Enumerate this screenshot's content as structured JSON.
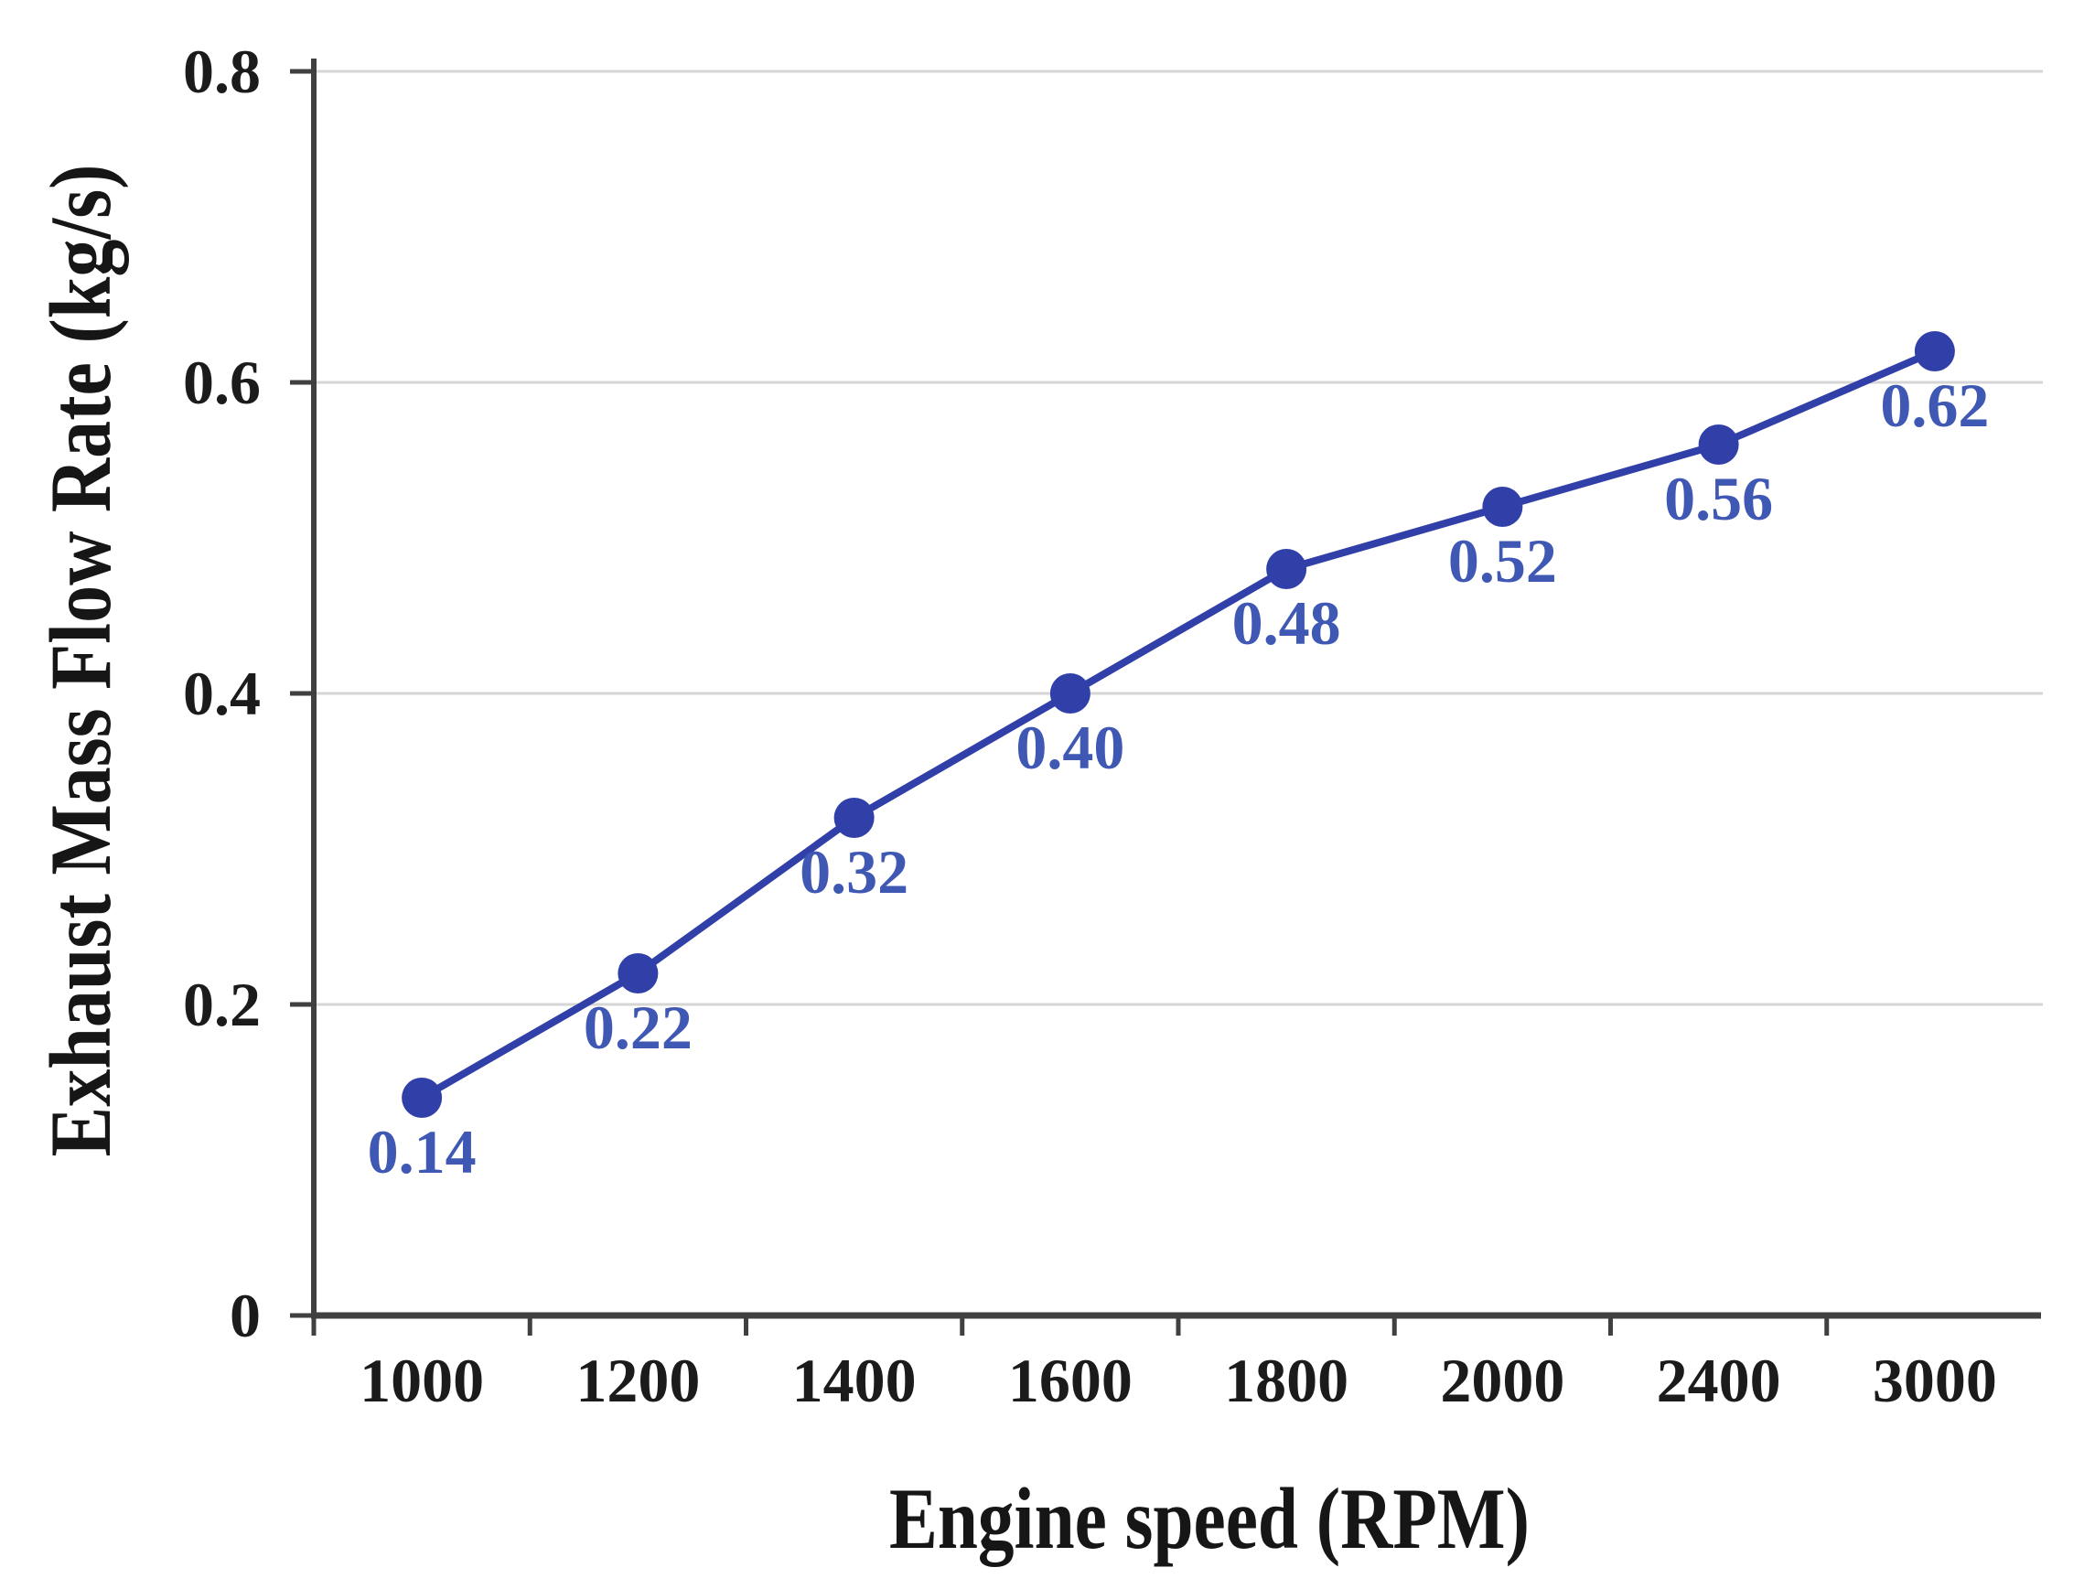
{
  "figure": {
    "background": "#ffffff"
  },
  "chart_data": {
    "type": "line",
    "title": "",
    "xlabel": "Engine speed (RPM)",
    "ylabel": "Exhaust Mass Flow Rate (kg/s)",
    "categories": [
      "1000",
      "1200",
      "1400",
      "1600",
      "1800",
      "2000",
      "2400",
      "3000"
    ],
    "series": [
      {
        "values": [
          0.14,
          0.22,
          0.32,
          0.4,
          0.48,
          0.52,
          0.56,
          0.62
        ],
        "labels": [
          "0.14",
          "0.22",
          "0.32",
          "0.40",
          "0.48",
          "0.52",
          "0.56",
          "0.62"
        ]
      }
    ],
    "y_ticks": [
      "0",
      "0.2",
      "0.4",
      "0.6",
      "0.8"
    ],
    "ylim": [
      0,
      0.8
    ],
    "grid": "horizontal",
    "legend": "none",
    "marker": "circle",
    "colors": {
      "line": "#3140a8",
      "marker": "#3140a8",
      "data_label": "#3f58b4",
      "axis": "#404040",
      "gridline": "#d6d6d6",
      "tick_label": "#1b1b1b",
      "axis_title": "#161616",
      "background": "#ffffff"
    }
  }
}
